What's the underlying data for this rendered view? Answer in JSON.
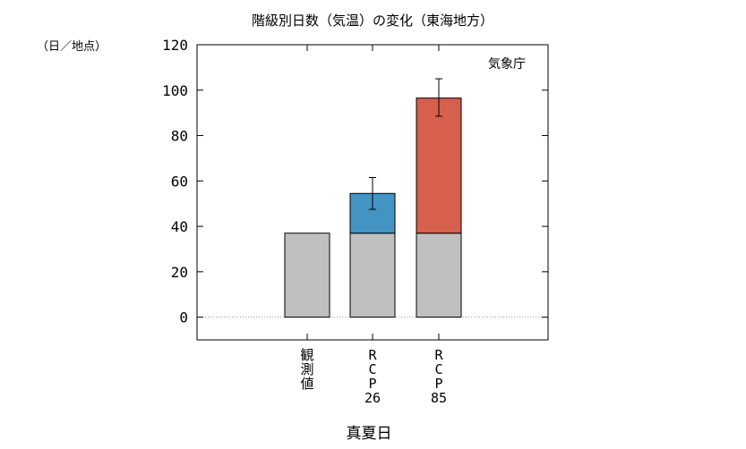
{
  "chart_data": {
    "type": "bar",
    "title": "階級別日数（気温）の変化（東海地方）",
    "ylabel": "（日／地点）",
    "xlabel": "真夏日",
    "source": "気象庁",
    "ylim": [
      -10,
      120
    ],
    "yticks": [
      0,
      20,
      40,
      60,
      80,
      100,
      120
    ],
    "grid": false,
    "categories": [
      [
        "観",
        "測",
        "値"
      ],
      [
        "R",
        "C",
        "P",
        "26"
      ],
      [
        "R",
        "C",
        "P",
        "85"
      ]
    ],
    "series": [
      {
        "values": [
          37,
          37,
          37
        ],
        "color": "#c0c0c0"
      },
      {
        "values": [
          0,
          17.5,
          59.5
        ],
        "color_by_category": [
          "#c0c0c0",
          "#4393c3",
          "#d6604d"
        ]
      }
    ],
    "totals": [
      37,
      54.5,
      96.5
    ],
    "error_bars": [
      null,
      [
        47.5,
        61.5
      ],
      [
        88.5,
        105
      ]
    ]
  }
}
